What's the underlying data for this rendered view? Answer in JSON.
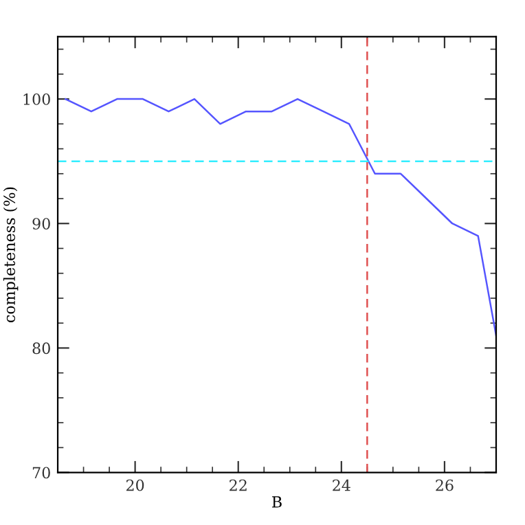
{
  "chart_data": {
    "type": "line",
    "xlabel": "B",
    "ylabel": "completeness (%)",
    "x": [
      18.65,
      19.15,
      19.65,
      20.15,
      20.65,
      21.15,
      21.65,
      22.15,
      22.65,
      23.15,
      23.65,
      24.15,
      24.65,
      25.15,
      25.65,
      26.15,
      26.65,
      27.0
    ],
    "series": [
      {
        "color": "#5555ff",
        "values": [
          100,
          99,
          100,
          100,
          99,
          100,
          98,
          99,
          99,
          100,
          99,
          98,
          94,
          94,
          92,
          90,
          89,
          81
        ]
      }
    ],
    "xlim": [
      18.5,
      27
    ],
    "ylim": [
      70,
      105
    ],
    "xticks": [
      20,
      22,
      24,
      26
    ],
    "yticks": [
      70,
      80,
      90,
      100
    ],
    "ref_lines": [
      {
        "axis": "x",
        "value": 24.5,
        "color": "#e05050",
        "line_style": "dashed"
      },
      {
        "axis": "y",
        "value": 95,
        "color": "#33eeff",
        "line_style": "dashed"
      }
    ],
    "grid": false,
    "legend": false,
    "marker": "none",
    "line_style": "solid"
  }
}
